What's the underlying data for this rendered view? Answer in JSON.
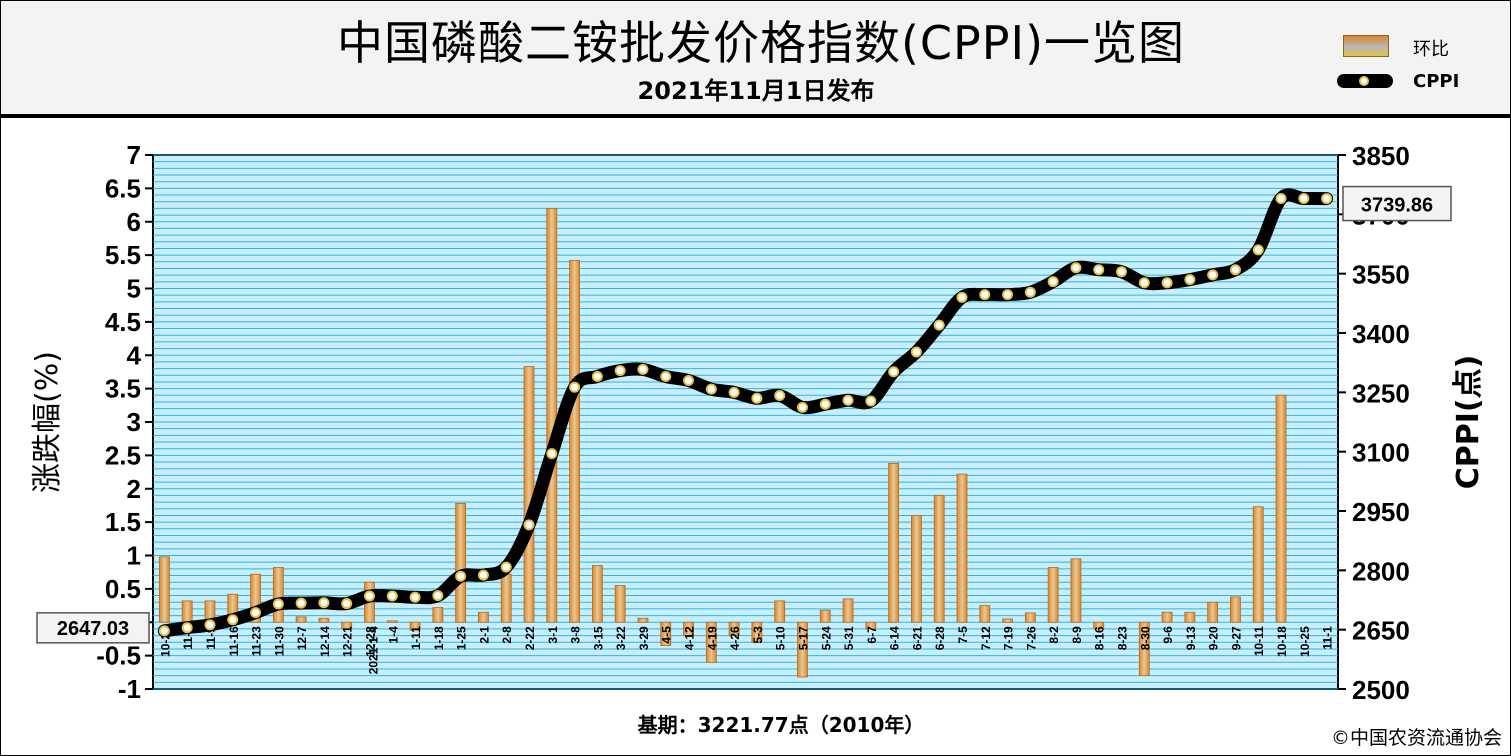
{
  "header": {
    "title": "中国磷酸二铵批发价格指数(CPPI)一览图",
    "subtitle": "2021年11月1日发布"
  },
  "legend": {
    "bar_label": "环比",
    "line_label": "CPPI"
  },
  "footer": {
    "base_note": "基期：3221.77点（2010年）",
    "copyright": "©中国农资流通协会"
  },
  "colors": {
    "plot_bg": "#c9eefa",
    "grid": "#2bb7e6",
    "bar_top": "#d9862a",
    "bar_mid": "#e8c896",
    "line": "#000000",
    "marker_fill": "#ffffff",
    "marker_ring": "#e8c14a"
  },
  "chart_data": {
    "type": "bar+line",
    "categories": [
      "10-26",
      "11-2",
      "11-9",
      "11-16",
      "11-23",
      "11-30",
      "12-7",
      "12-14",
      "12-21",
      "12-28",
      "1-4",
      "1-11",
      "1-18",
      "1-25",
      "2-1",
      "2-8",
      "2-22",
      "3-1",
      "3-8",
      "3-15",
      "3-22",
      "3-29",
      "4-5",
      "4-12",
      "4-19",
      "4-26",
      "5-3",
      "5-10",
      "5-17",
      "5-24",
      "5-31",
      "6-7",
      "6-14",
      "6-21",
      "6-28",
      "7-5",
      "7-12",
      "7-19",
      "7-26",
      "8-2",
      "8-9",
      "8-16",
      "8-23",
      "8-30",
      "9-6",
      "9-13",
      "9-20",
      "9-27",
      "10-11",
      "10-18",
      "10-25",
      "11-1"
    ],
    "year_marker": {
      "category": "1-4",
      "label": "2021-1-4"
    },
    "series": [
      {
        "name": "环比",
        "axis": "left",
        "values": [
          0.98,
          0.32,
          0.32,
          0.42,
          0.72,
          0.82,
          0.08,
          0.06,
          -0.1,
          0.6,
          0.02,
          -0.12,
          0.22,
          1.78,
          0.15,
          0.72,
          3.83,
          6.2,
          5.42,
          0.85,
          0.55,
          0.06,
          -0.35,
          -0.2,
          -0.6,
          -0.2,
          -0.3,
          0.32,
          -0.82,
          0.18,
          0.35,
          -0.1,
          2.38,
          1.6,
          1.9,
          2.22,
          0.25,
          0.05,
          0.14,
          0.82,
          0.95,
          -0.1,
          0.0,
          -0.8,
          0.15,
          0.15,
          0.3,
          0.38,
          1.73,
          3.4,
          0.0,
          0.0
        ]
      },
      {
        "name": "CPPI",
        "axis": "right",
        "values": [
          2647.03,
          2655,
          2662,
          2675,
          2693,
          2715,
          2717,
          2718,
          2716,
          2735,
          2735,
          2732,
          2736,
          2785,
          2788,
          2808,
          2915,
          3095,
          3263,
          3290,
          3305,
          3308,
          3290,
          3280,
          3258,
          3250,
          3235,
          3242,
          3212,
          3220,
          3230,
          3228,
          3302,
          3352,
          3420,
          3490,
          3497,
          3497,
          3503,
          3530,
          3565,
          3560,
          3555,
          3527,
          3527,
          3535,
          3547,
          3560,
          3610,
          3740,
          3740,
          3739.86
        ]
      }
    ],
    "left_axis": {
      "label": "涨跌幅(%)",
      "min": -1,
      "max": 7,
      "step": 0.5,
      "ticks": [
        "-1",
        "-0.5",
        "0",
        "0.5",
        "1",
        "1.5",
        "2",
        "2.5",
        "3",
        "3.5",
        "4",
        "4.5",
        "5",
        "5.5",
        "6",
        "6.5",
        "7"
      ]
    },
    "right_axis": {
      "label": "CPPI(点)",
      "min": 2500,
      "max": 3850,
      "step": 150,
      "ticks": [
        "2500",
        "2650",
        "2800",
        "2950",
        "3100",
        "3250",
        "3400",
        "3550",
        "3700",
        "3850"
      ]
    },
    "callouts": {
      "first": "2647.03",
      "last": "3739.86"
    },
    "grid": true
  }
}
